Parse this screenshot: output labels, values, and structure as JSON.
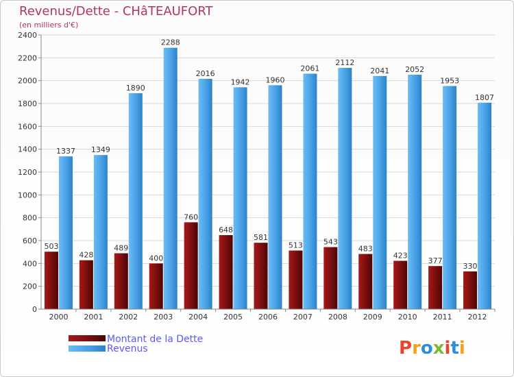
{
  "chart_data": {
    "type": "bar",
    "title": "Revenus/Dette - CHâTEAUFORT",
    "subtitle": "(en milliers d'€)",
    "categories": [
      "2000",
      "2001",
      "2002",
      "2003",
      "2004",
      "2005",
      "2006",
      "2007",
      "2008",
      "2009",
      "2010",
      "2011",
      "2012"
    ],
    "series": [
      {
        "name": "Montant de la Dette",
        "color": "#7a0e0e",
        "values": [
          503,
          428,
          489,
          400,
          760,
          648,
          581,
          513,
          543,
          483,
          423,
          377,
          330
        ]
      },
      {
        "name": "Revenus",
        "color": "#4aa3e8",
        "values": [
          1337,
          1349,
          1890,
          2288,
          2016,
          1942,
          1960,
          2061,
          2112,
          2041,
          2052,
          1953,
          1807
        ]
      }
    ],
    "ylim": [
      0,
      2400
    ],
    "yticks": [
      0,
      200,
      400,
      600,
      800,
      1000,
      1200,
      1400,
      1600,
      1800,
      2000,
      2200,
      2400
    ],
    "grid": true,
    "legend_position": "bottom-left"
  },
  "logo": {
    "text": "Proxiti",
    "colors": [
      "#e8462b",
      "#f2a31b",
      "#2e8fd8",
      "#7cb82f",
      "#e8462b",
      "#2e8fd8",
      "#f2a31b"
    ]
  }
}
